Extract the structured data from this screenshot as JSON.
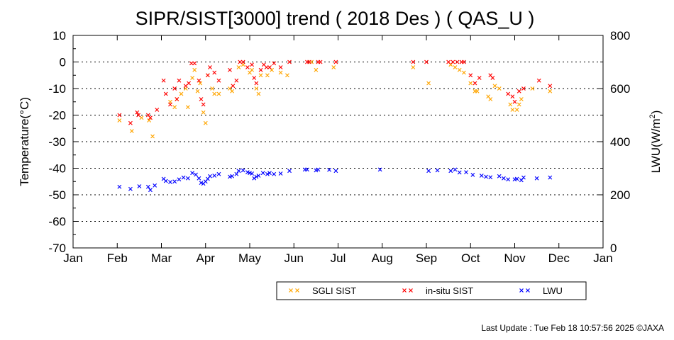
{
  "chart_data": {
    "type": "scatter",
    "title": "SIPR/SIST[3000] trend ( 2018 Des ) ( QAS_U )",
    "ylabel": "Temperature(°C)",
    "y2label_prefix": "LWU(W/m",
    "y2label_sup": "2",
    "y2label_suffix": ")",
    "x_ticks": [
      "Jan",
      "Feb",
      "Mar",
      "Apr",
      "May",
      "Jun",
      "Jul",
      "Aug",
      "Sep",
      "Oct",
      "Nov",
      "Dec",
      "Jan"
    ],
    "x_range_months": [
      0,
      12
    ],
    "ylim": [
      -70,
      10
    ],
    "y_ticks": [
      "10",
      "0",
      "-10",
      "-20",
      "-30",
      "-40",
      "-50",
      "-60",
      "-70"
    ],
    "y2lim": [
      0,
      800
    ],
    "y2_ticks": [
      "800",
      "600",
      "400",
      "200",
      "0"
    ],
    "grid": "dotted horizontal at each y tick",
    "legend_position": "bottom",
    "series": [
      {
        "name": "SGLI SIST",
        "color": "#ffa500",
        "axis": "left",
        "points": [
          [
            1.05,
            -22
          ],
          [
            1.33,
            -26
          ],
          [
            1.55,
            -21
          ],
          [
            1.72,
            -22
          ],
          [
            1.8,
            -28
          ],
          [
            2.2,
            -15
          ],
          [
            2.3,
            -17
          ],
          [
            2.35,
            -14
          ],
          [
            2.45,
            -12
          ],
          [
            2.55,
            -10
          ],
          [
            2.6,
            -17
          ],
          [
            2.7,
            -6
          ],
          [
            2.75,
            -3
          ],
          [
            2.82,
            -11
          ],
          [
            2.88,
            -8
          ],
          [
            2.95,
            -19
          ],
          [
            3.0,
            -23
          ],
          [
            3.05,
            -5
          ],
          [
            3.15,
            -10
          ],
          [
            3.2,
            -12
          ],
          [
            3.3,
            -12
          ],
          [
            3.55,
            -10
          ],
          [
            3.6,
            -11
          ],
          [
            3.75,
            -2
          ],
          [
            3.85,
            -1
          ],
          [
            4.0,
            -4
          ],
          [
            4.05,
            -3
          ],
          [
            4.15,
            -10
          ],
          [
            4.2,
            -12
          ],
          [
            4.25,
            -5
          ],
          [
            4.4,
            -5
          ],
          [
            4.5,
            -3
          ],
          [
            4.7,
            -4
          ],
          [
            4.85,
            -5
          ],
          [
            5.4,
            0
          ],
          [
            5.5,
            -3
          ],
          [
            5.9,
            -2
          ],
          [
            7.7,
            -2
          ],
          [
            8.05,
            -8
          ],
          [
            8.55,
            -1
          ],
          [
            8.65,
            -2
          ],
          [
            8.75,
            -3
          ],
          [
            8.85,
            -4
          ],
          [
            9.0,
            -8
          ],
          [
            9.1,
            -11
          ],
          [
            9.15,
            -11
          ],
          [
            9.4,
            -13
          ],
          [
            9.45,
            -14
          ],
          [
            9.55,
            -9
          ],
          [
            9.65,
            -10
          ],
          [
            9.9,
            -16
          ],
          [
            9.95,
            -18
          ],
          [
            10.05,
            -18
          ],
          [
            10.1,
            -16
          ],
          [
            10.15,
            -14
          ],
          [
            10.4,
            -10
          ],
          [
            10.8,
            -11
          ]
        ]
      },
      {
        "name": "in-situ SIST",
        "color": "#ff0000",
        "axis": "left",
        "points": [
          [
            1.05,
            -20
          ],
          [
            1.3,
            -23
          ],
          [
            1.45,
            -19
          ],
          [
            1.48,
            -20
          ],
          [
            1.7,
            -20
          ],
          [
            1.75,
            -21
          ],
          [
            1.9,
            -18
          ],
          [
            2.05,
            -7
          ],
          [
            2.1,
            -12
          ],
          [
            2.2,
            -16
          ],
          [
            2.3,
            -10
          ],
          [
            2.35,
            -14
          ],
          [
            2.4,
            -7
          ],
          [
            2.55,
            -9
          ],
          [
            2.62,
            -8
          ],
          [
            2.68,
            -0.5
          ],
          [
            2.75,
            -0.5
          ],
          [
            2.85,
            -7
          ],
          [
            2.9,
            -14
          ],
          [
            2.95,
            -16
          ],
          [
            3.05,
            -5
          ],
          [
            3.1,
            -2
          ],
          [
            3.2,
            -4
          ],
          [
            3.3,
            -7
          ],
          [
            3.55,
            -3
          ],
          [
            3.62,
            -9
          ],
          [
            3.7,
            -7
          ],
          [
            3.78,
            0
          ],
          [
            3.85,
            0
          ],
          [
            3.95,
            -2
          ],
          [
            4.05,
            -1
          ],
          [
            4.1,
            -6
          ],
          [
            4.15,
            -8
          ],
          [
            4.25,
            -3
          ],
          [
            4.32,
            -1
          ],
          [
            4.38,
            -2
          ],
          [
            4.45,
            -2
          ],
          [
            4.55,
            -0.5
          ],
          [
            4.7,
            -2
          ],
          [
            4.9,
            0
          ],
          [
            5.3,
            0
          ],
          [
            5.35,
            0
          ],
          [
            5.55,
            0
          ],
          [
            5.6,
            0
          ],
          [
            5.95,
            0
          ],
          [
            7.7,
            0
          ],
          [
            8.0,
            0
          ],
          [
            8.5,
            0
          ],
          [
            8.6,
            0
          ],
          [
            8.7,
            0
          ],
          [
            8.8,
            0
          ],
          [
            8.85,
            0
          ],
          [
            9.0,
            -5
          ],
          [
            9.1,
            -8
          ],
          [
            9.2,
            -6
          ],
          [
            9.45,
            -5
          ],
          [
            9.5,
            -6
          ],
          [
            9.85,
            -12
          ],
          [
            9.95,
            -13
          ],
          [
            10.0,
            -15
          ],
          [
            10.1,
            -11
          ],
          [
            10.2,
            -10
          ],
          [
            10.55,
            -7
          ],
          [
            10.8,
            -9
          ]
        ]
      },
      {
        "name": "LWU",
        "color": "#0000ff",
        "axis": "right",
        "points": [
          [
            1.05,
            230
          ],
          [
            1.3,
            222
          ],
          [
            1.5,
            232
          ],
          [
            1.7,
            230
          ],
          [
            1.75,
            218
          ],
          [
            1.85,
            235
          ],
          [
            2.05,
            260
          ],
          [
            2.1,
            252
          ],
          [
            2.2,
            248
          ],
          [
            2.3,
            250
          ],
          [
            2.4,
            258
          ],
          [
            2.5,
            265
          ],
          [
            2.6,
            262
          ],
          [
            2.7,
            282
          ],
          [
            2.78,
            276
          ],
          [
            2.85,
            262
          ],
          [
            2.9,
            245
          ],
          [
            2.95,
            242
          ],
          [
            3.0,
            250
          ],
          [
            3.05,
            260
          ],
          [
            3.1,
            270
          ],
          [
            3.2,
            272
          ],
          [
            3.3,
            278
          ],
          [
            3.55,
            268
          ],
          [
            3.6,
            270
          ],
          [
            3.7,
            278
          ],
          [
            3.75,
            290
          ],
          [
            3.85,
            292
          ],
          [
            3.95,
            285
          ],
          [
            4.0,
            282
          ],
          [
            4.05,
            280
          ],
          [
            4.1,
            262
          ],
          [
            4.15,
            268
          ],
          [
            4.2,
            272
          ],
          [
            4.3,
            282
          ],
          [
            4.4,
            278
          ],
          [
            4.45,
            282
          ],
          [
            4.55,
            278
          ],
          [
            4.7,
            280
          ],
          [
            4.9,
            290
          ],
          [
            5.25,
            295
          ],
          [
            5.3,
            295
          ],
          [
            5.5,
            292
          ],
          [
            5.55,
            295
          ],
          [
            5.8,
            294
          ],
          [
            5.95,
            290
          ],
          [
            6.95,
            295
          ],
          [
            8.05,
            290
          ],
          [
            8.25,
            292
          ],
          [
            8.55,
            290
          ],
          [
            8.65,
            295
          ],
          [
            8.75,
            284
          ],
          [
            8.9,
            285
          ],
          [
            9.05,
            275
          ],
          [
            9.25,
            272
          ],
          [
            9.35,
            268
          ],
          [
            9.45,
            266
          ],
          [
            9.65,
            270
          ],
          [
            9.75,
            262
          ],
          [
            9.85,
            258
          ],
          [
            10.0,
            258
          ],
          [
            10.05,
            260
          ],
          [
            10.15,
            255
          ],
          [
            10.2,
            265
          ],
          [
            10.5,
            262
          ],
          [
            10.8,
            265
          ]
        ]
      }
    ]
  },
  "footer": {
    "last_update": "Last Update : Tue Feb 18 10:57:56 2025  ©JAXA"
  }
}
